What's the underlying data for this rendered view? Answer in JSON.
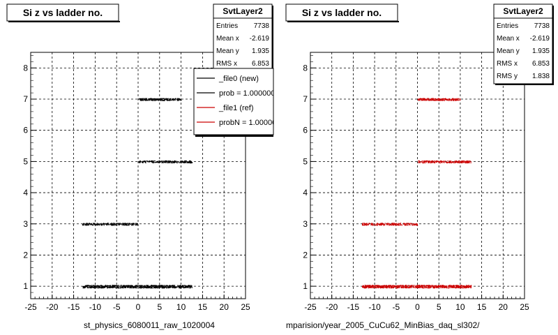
{
  "chart_data": [
    {
      "type": "scatter",
      "title": "Si z vs ladder no.",
      "xlabel": "st_physics_6080011_raw_1020004",
      "ylabel": "",
      "xlim": [
        -25,
        25
      ],
      "ylim": [
        0.6,
        8.5
      ],
      "xticks": [
        -25,
        -20,
        -15,
        -10,
        -5,
        0,
        5,
        10,
        15,
        20,
        25
      ],
      "yticks": [
        1,
        2,
        3,
        4,
        5,
        6,
        7,
        8
      ],
      "grid": true,
      "marker_color": "#000000",
      "stats": {
        "name": "SvtLayer2",
        "rows": [
          {
            "label": "Entries",
            "value": "7738"
          },
          {
            "label": "Mean x",
            "value": "-2.619"
          },
          {
            "label": "Mean y",
            "value": "1.935"
          },
          {
            "label": "RMS x",
            "value": "6.853"
          }
        ]
      },
      "legend": {
        "entries": [
          {
            "label": "_file0 (new)",
            "color": "#000000"
          },
          {
            "label": "prob = 1.000000",
            "color": "#000000"
          },
          {
            "label": "_file1 (ref)",
            "color": "#cc0000"
          },
          {
            "label": "probN = 1.000000",
            "color": "#cc0000"
          }
        ]
      },
      "bands": [
        {
          "y": 1,
          "xmin": -13,
          "xmax": 12.5,
          "density": "high"
        },
        {
          "y": 3,
          "xmin": -13,
          "xmax": 0,
          "density": "medium"
        },
        {
          "y": 5,
          "xmin": 0,
          "xmax": 12.5,
          "density": "medium"
        },
        {
          "y": 7,
          "xmin": 0,
          "xmax": 10,
          "density": "medium"
        }
      ]
    },
    {
      "type": "scatter",
      "title": "Si z vs ladder no.",
      "xlabel": "mparision/year_2005_CuCu62_MinBias_daq_sl302/",
      "ylabel": "",
      "xlim": [
        -25,
        25
      ],
      "ylim": [
        0.6,
        8.5
      ],
      "xticks": [
        -25,
        -20,
        -15,
        -10,
        -5,
        0,
        5,
        10,
        15,
        20,
        25
      ],
      "yticks": [
        1,
        2,
        3,
        4,
        5,
        6,
        7,
        8
      ],
      "grid": true,
      "marker_color": "#cc0000",
      "stats": {
        "name": "SvtLayer2",
        "rows": [
          {
            "label": "Entries",
            "value": "7738"
          },
          {
            "label": "Mean x",
            "value": "-2.619"
          },
          {
            "label": "Mean y",
            "value": "1.935"
          },
          {
            "label": "RMS x",
            "value": "6.853"
          },
          {
            "label": "RMS y",
            "value": "1.838"
          }
        ]
      },
      "bands": [
        {
          "y": 1,
          "xmin": -13,
          "xmax": 12.5,
          "density": "high"
        },
        {
          "y": 3,
          "xmin": -13,
          "xmax": 0,
          "density": "medium"
        },
        {
          "y": 5,
          "xmin": 0,
          "xmax": 12.5,
          "density": "medium"
        },
        {
          "y": 7,
          "xmin": 0,
          "xmax": 10,
          "density": "medium"
        }
      ]
    }
  ]
}
